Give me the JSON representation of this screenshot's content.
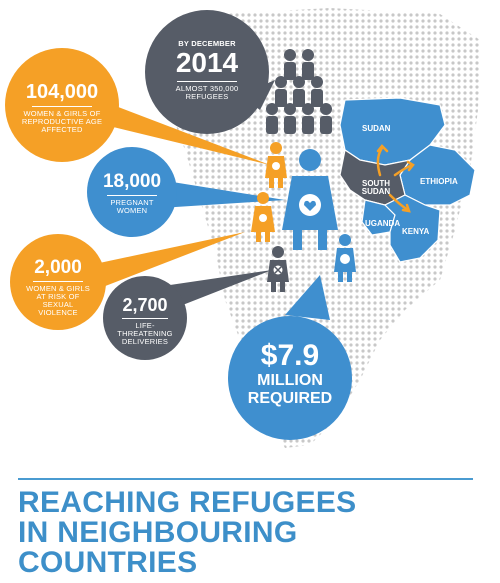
{
  "callouts": {
    "december": {
      "by_label": "BY DECEMBER",
      "year": "2014",
      "refugees": "ALMOST 350,000 REFUGEES"
    },
    "women": {
      "number": "104,000",
      "label": "WOMEN & GIRLS OF REPRODUCTIVE AGE AFFECTED"
    },
    "pregnant": {
      "number": "18,000",
      "label": "PREGNANT WOMEN"
    },
    "violence": {
      "number": "2,000",
      "label": "WOMEN & GIRLS AT RISK OF SEXUAL VIOLENCE"
    },
    "deliveries": {
      "number": "2,700",
      "label": "LIFE-THREATENING DELIVERIES"
    },
    "funding": {
      "amount": "$7.9",
      "line2": "MILLION",
      "line3": "REQUIRED"
    }
  },
  "map": {
    "countries": {
      "sudan": "SUDAN",
      "south_sudan": "SOUTH SUDAN",
      "ethiopia": "ETHIOPIA",
      "uganda": "UGANDA",
      "kenya": "KENYA"
    }
  },
  "headline": {
    "line1": "REACHING REFUGEES",
    "line2": "IN NEIGHBOURING",
    "line3": "COUNTRIES"
  },
  "colors": {
    "orange": "#f5a026",
    "blue": "#3f8fcf",
    "slate": "#565c67",
    "dots": "#c8c8c8"
  },
  "icons": [
    "person-icon",
    "pregnant-woman-icon",
    "crossed-person-icon",
    "money-person-icon",
    "arrow-icon"
  ]
}
